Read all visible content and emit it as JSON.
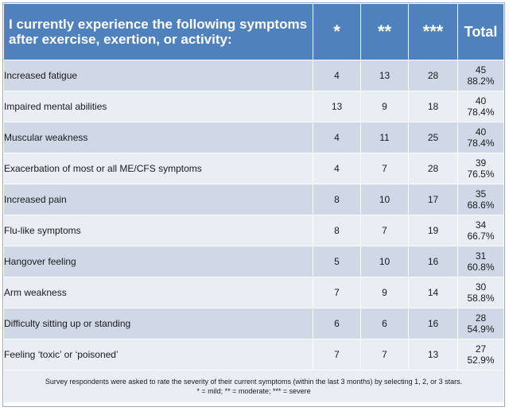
{
  "header": {
    "title": "I currently experience the following symptoms after exercise, exertion, or activity:",
    "col1": "*",
    "col2": "**",
    "col3": "***",
    "total": "Total"
  },
  "rows": [
    {
      "label": "Increased fatigue",
      "c1": "4",
      "c2": "13",
      "c3": "28",
      "total": "45",
      "pct": "88.2%"
    },
    {
      "label": "Impaired mental abilities",
      "c1": "13",
      "c2": "9",
      "c3": "18",
      "total": "40",
      "pct": "78.4%"
    },
    {
      "label": "Muscular weakness",
      "c1": "4",
      "c2": "11",
      "c3": "25",
      "total": "40",
      "pct": "78.4%"
    },
    {
      "label": "Exacerbation of most or all ME/CFS symptoms",
      "c1": "4",
      "c2": "7",
      "c3": "28",
      "total": "39",
      "pct": "76.5%"
    },
    {
      "label": "Increased pain",
      "c1": "8",
      "c2": "10",
      "c3": "17",
      "total": "35",
      "pct": "68.6%"
    },
    {
      "label": "Flu-like symptoms",
      "c1": "8",
      "c2": "7",
      "c3": "19",
      "total": "34",
      "pct": "66.7%"
    },
    {
      "label": "Hangover feeling",
      "c1": "5",
      "c2": "10",
      "c3": "16",
      "total": "31",
      "pct": "60.8%"
    },
    {
      "label": "Arm weakness",
      "c1": "7",
      "c2": "9",
      "c3": "14",
      "total": "30",
      "pct": "58.8%"
    },
    {
      "label": "Difficulty sitting up or standing",
      "c1": "6",
      "c2": "6",
      "c3": "16",
      "total": "28",
      "pct": "54.9%"
    },
    {
      "label": "Feeling ‘toxic’ or ‘poisoned’",
      "c1": "7",
      "c2": "7",
      "c3": "13",
      "total": "27",
      "pct": "52.9%"
    }
  ],
  "footer": {
    "line1": "Survey respondents were asked to rate the severity of their current symptoms (within the last 3 months) by selecting 1, 2, or 3 stars.",
    "line2": "* = mild;  ** = moderate;  *** = severe"
  },
  "colors": {
    "header_bg": "#4f81bd",
    "row_odd": "#d0d8e8",
    "row_even": "#e9edf4"
  }
}
